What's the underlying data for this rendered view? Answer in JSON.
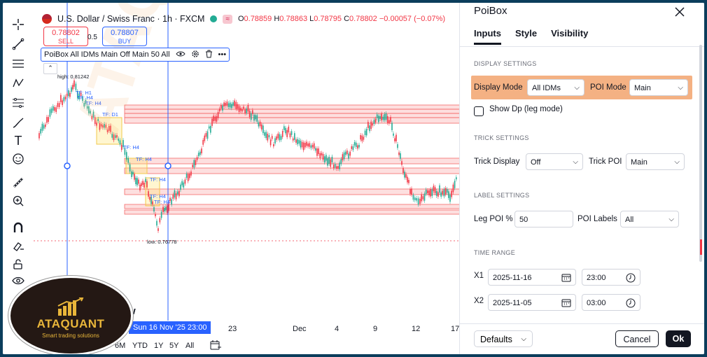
{
  "chart_header": {
    "symbol": "U.S. Dollar / Swiss Franc · 1h · FXCM",
    "ohlc": [
      {
        "k": "O",
        "v": "0.78859"
      },
      {
        "k": "H",
        "v": "0.78863"
      },
      {
        "k": "L",
        "v": "0.78795"
      },
      {
        "k": "C",
        "v": "0.78802"
      }
    ],
    "change": "−0.00057 (−0.07%)",
    "badge": "≈"
  },
  "trade": {
    "sell_price": "0.78802",
    "sell_label": "SELL",
    "spread": "0.5",
    "buy_price": "0.78807",
    "buy_label": "BUY"
  },
  "indicator": {
    "name": "PoiBox All IDMs Main Off Main 50 All"
  },
  "chart_labels": {
    "high": "high: 0.81242",
    "low": "low: 0.76778",
    "tf_labels": [
      "TF: H1",
      "TF: H4",
      "TF: H4",
      "TF: D1",
      "TF: H4",
      "TF: H4",
      "TF: H4",
      "TF: H4",
      "TF: H4"
    ],
    "partial_text": "w"
  },
  "time_axis": {
    "crosshair": "Sun 16 Nov '25   23:00",
    "labels": [
      "23",
      "Dec",
      "4",
      "9",
      "12",
      "17"
    ]
  },
  "ranges": [
    "M",
    "6M",
    "YTD",
    "1Y",
    "5Y",
    "All"
  ],
  "logo": {
    "name": "ATAQUANT",
    "tagline": "Smart trading solutions"
  },
  "panel": {
    "title": "PoiBox",
    "tabs": [
      "Inputs",
      "Style",
      "Visibility"
    ],
    "display_settings": {
      "title": "DISPLAY SETTINGS",
      "display_mode_label": "Display Mode",
      "display_mode_value": "All IDMs",
      "poi_mode_label": "POI Mode",
      "poi_mode_value": "Main",
      "show_dp_label": "Show Dp (leg mode)"
    },
    "trick_settings": {
      "title": "TRICK SETTINGS",
      "trick_display_label": "Trick Display",
      "trick_display_value": "Off",
      "trick_poi_label": "Trick POI",
      "trick_poi_value": "Main"
    },
    "label_settings": {
      "title": "LABEL SETTINGS",
      "leg_poi_label": "Leg POI %",
      "leg_poi_value": "50",
      "poi_labels_label": "POI Labels",
      "poi_labels_value": "All"
    },
    "time_range": {
      "title": "TIME RANGE",
      "x1_label": "X1",
      "x1_date": "2025-11-16",
      "x1_time": "23:00",
      "x2_label": "X2",
      "x2_date": "2025-11-05",
      "x2_time": "03:00"
    },
    "footer": {
      "defaults": "Defaults",
      "cancel": "Cancel",
      "ok": "Ok"
    }
  }
}
